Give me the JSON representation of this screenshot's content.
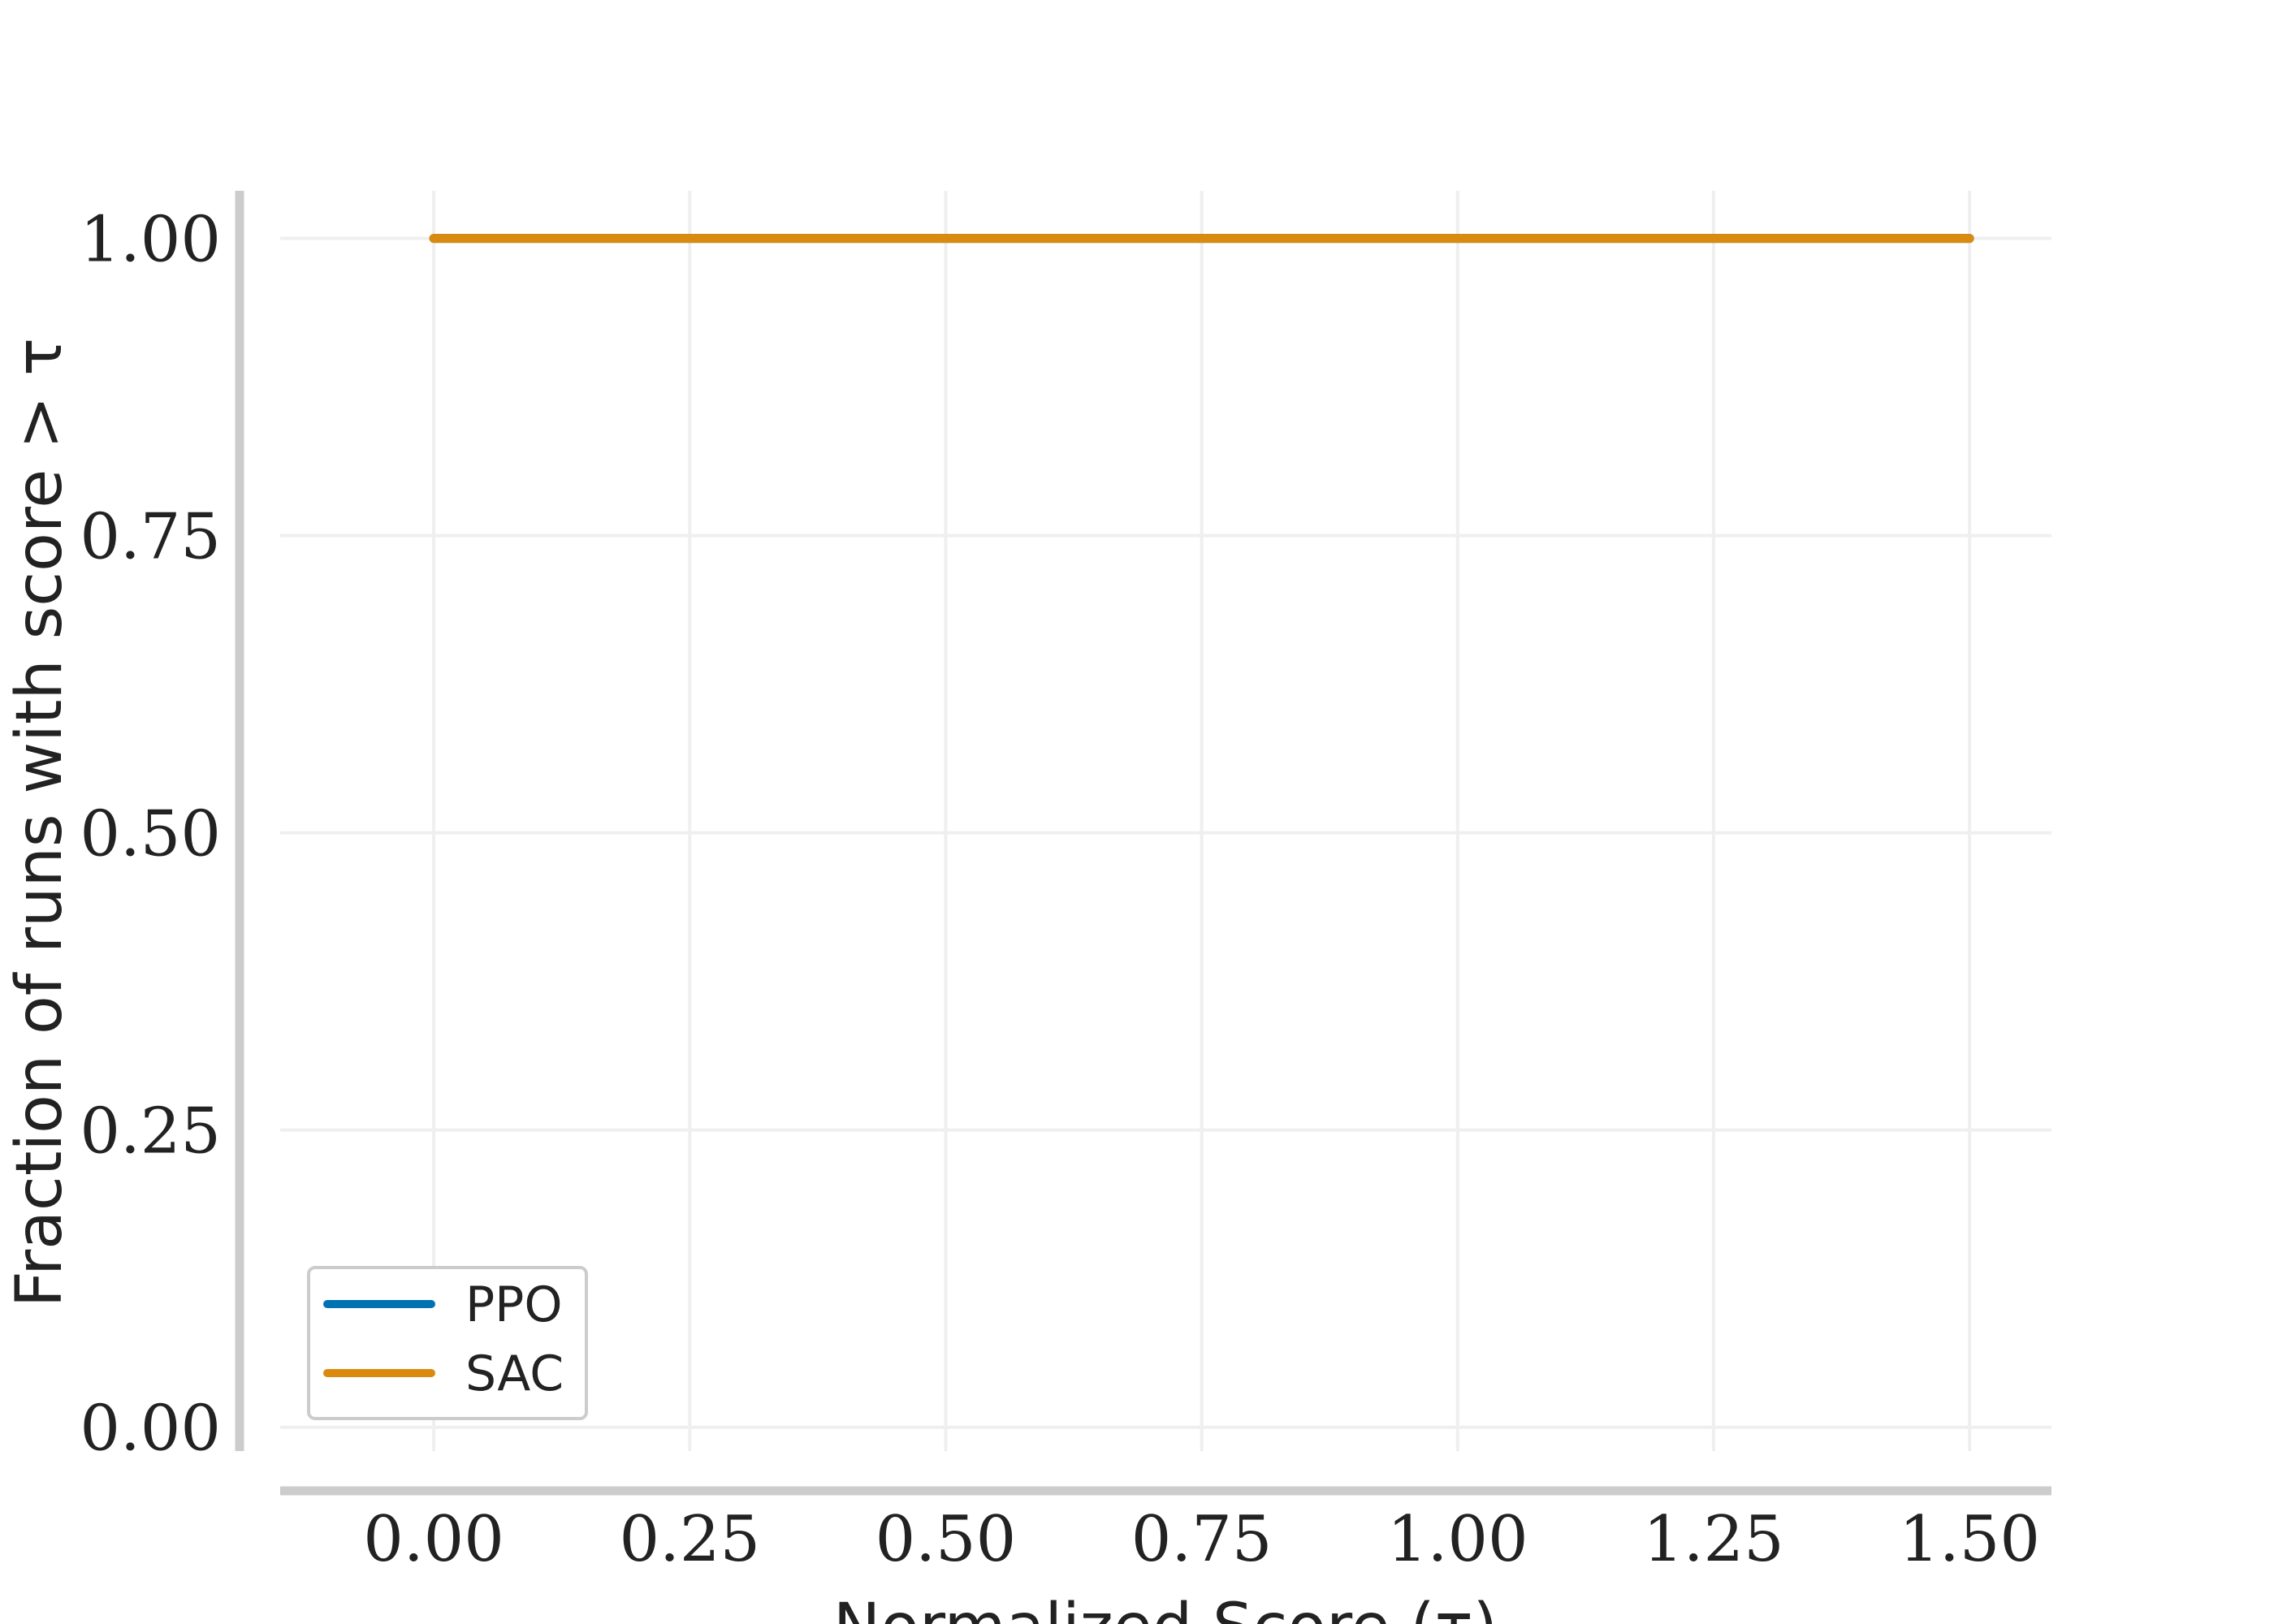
{
  "chart_data": {
    "type": "line",
    "xlabel": "Normalized Score (τ)",
    "ylabel": "Fraction of runs with score > τ",
    "xlim": [
      -0.15,
      1.58
    ],
    "ylim": [
      -0.02,
      1.04
    ],
    "xticks": [
      0.0,
      0.25,
      0.5,
      0.75,
      1.0,
      1.25,
      1.5
    ],
    "xtick_labels": [
      "0.00",
      "0.25",
      "0.50",
      "0.75",
      "1.00",
      "1.25",
      "1.50"
    ],
    "yticks": [
      0.0,
      0.25,
      0.5,
      0.75,
      1.0
    ],
    "ytick_labels": [
      "0.00",
      "0.25",
      "0.50",
      "0.75",
      "1.00"
    ],
    "grid": true,
    "legend_position": "bottom-left",
    "series": [
      {
        "name": "PPO",
        "color": "#0072b2",
        "x": [
          0.0,
          0.25,
          0.5,
          0.75,
          1.0,
          1.25,
          1.5
        ],
        "y": [
          1.0,
          1.0,
          1.0,
          1.0,
          1.0,
          1.0,
          1.0
        ]
      },
      {
        "name": "SAC",
        "color": "#d98a0f",
        "x": [
          0.0,
          0.25,
          0.5,
          0.75,
          1.0,
          1.25,
          1.5
        ],
        "y": [
          1.0,
          1.0,
          1.0,
          1.0,
          1.0,
          1.0,
          1.0
        ]
      }
    ]
  }
}
